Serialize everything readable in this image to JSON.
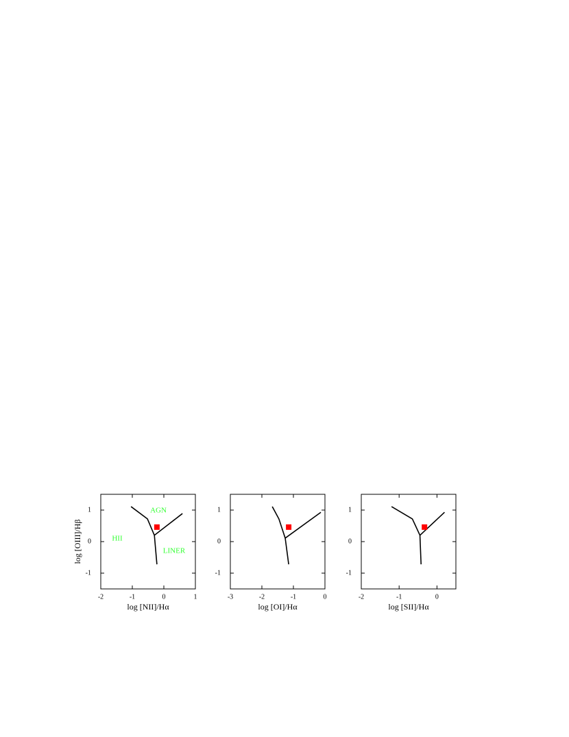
{
  "chart_data": [
    {
      "type": "scatter",
      "xlabel": "log [NII]/Hα",
      "ylabel": "log [OIII]/Hβ",
      "xlim": [
        -2,
        1
      ],
      "ylim": [
        -1.5,
        1.5
      ],
      "xticks": [
        -2,
        -1,
        0,
        1
      ],
      "yticks": [
        -1,
        0,
        1
      ],
      "annotations": [
        "AGN",
        "HII",
        "LINER"
      ],
      "lines": [
        {
          "color": "#000000",
          "x": [
            -1.04,
            -0.52,
            -0.3,
            -0.22
          ],
          "y": [
            1.11,
            0.72,
            0.2,
            -0.72
          ]
        },
        {
          "color": "#000000",
          "x": [
            -0.3,
            0.59
          ],
          "y": [
            0.2,
            0.89
          ]
        }
      ],
      "series": [
        {
          "color": "#ff0000",
          "x": [
            -0.22
          ],
          "values": [
            0.46
          ]
        }
      ]
    },
    {
      "type": "scatter",
      "xlabel": "log [OI]/Hα",
      "xlim": [
        -3,
        0
      ],
      "ylim": [
        -1.5,
        1.5
      ],
      "xticks": [
        -3,
        -2,
        -1,
        0
      ],
      "yticks": [
        -1,
        0,
        1
      ],
      "lines": [
        {
          "color": "#000000",
          "x": [
            -1.67,
            -1.46,
            -1.26,
            -1.15
          ],
          "y": [
            1.11,
            0.72,
            0.11,
            -0.72
          ]
        },
        {
          "color": "#000000",
          "x": [
            -1.26,
            -0.13
          ],
          "y": [
            0.11,
            0.93
          ]
        }
      ],
      "series": [
        {
          "color": "#ff0000",
          "x": [
            -1.15
          ],
          "values": [
            0.46
          ]
        }
      ]
    },
    {
      "type": "scatter",
      "xlabel": "log [SII]/Hα",
      "xlim": [
        -2,
        0.5
      ],
      "ylim": [
        -1.5,
        1.5
      ],
      "xticks": [
        -2,
        -1,
        0
      ],
      "yticks": [
        -1,
        0,
        1
      ],
      "lines": [
        {
          "color": "#000000",
          "x": [
            -1.2,
            -0.65,
            -0.45,
            -0.42
          ],
          "y": [
            1.11,
            0.72,
            0.2,
            -0.72
          ]
        },
        {
          "color": "#000000",
          "x": [
            -0.45,
            0.2
          ],
          "y": [
            0.2,
            0.93
          ]
        }
      ],
      "series": [
        {
          "color": "#ff0000",
          "x": [
            -0.33
          ],
          "values": [
            0.46
          ]
        }
      ]
    }
  ]
}
